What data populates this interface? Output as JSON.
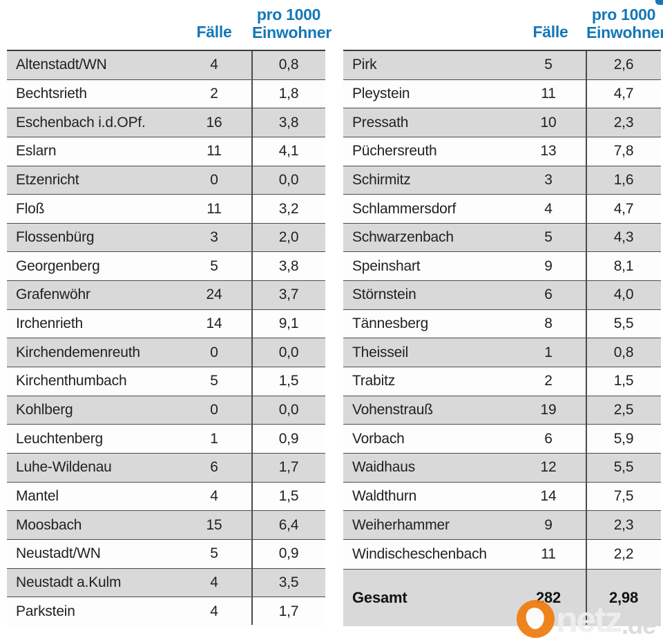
{
  "chart_data": {
    "type": "table",
    "columns": {
      "municipality": "",
      "cases": "Fälle",
      "rate_line1": "pro 1000",
      "rate_line2": "Einwohner"
    },
    "left": {
      "rows": [
        [
          "Altenstadt/WN",
          "4",
          "0,8"
        ],
        [
          "Bechtsrieth",
          "2",
          "1,8"
        ],
        [
          "Eschenbach i.d.OPf.",
          "16",
          "3,8"
        ],
        [
          "Eslarn",
          "11",
          "4,1"
        ],
        [
          "Etzenricht",
          "0",
          "0,0"
        ],
        [
          "Floß",
          "11",
          "3,2"
        ],
        [
          "Flossenbürg",
          "3",
          "2,0"
        ],
        [
          "Georgenberg",
          "5",
          "3,8"
        ],
        [
          "Grafenwöhr",
          "24",
          "3,7"
        ],
        [
          "Irchenrieth",
          "14",
          "9,1"
        ],
        [
          "Kirchendemenreuth",
          "0",
          "0,0"
        ],
        [
          "Kirchenthumbach",
          "5",
          "1,5"
        ],
        [
          "Kohlberg",
          "0",
          "0,0"
        ],
        [
          "Leuchtenberg",
          "1",
          "0,9"
        ],
        [
          "Luhe-Wildenau",
          "6",
          "1,7"
        ],
        [
          "Mantel",
          "4",
          "1,5"
        ],
        [
          "Moosbach",
          "15",
          "6,4"
        ],
        [
          "Neustadt/WN",
          "5",
          "0,9"
        ],
        [
          "Neustadt a.Kulm",
          "4",
          "3,5"
        ],
        [
          "Parkstein",
          "4",
          "1,7"
        ]
      ]
    },
    "right": {
      "rows": [
        [
          "Pirk",
          "5",
          "2,6"
        ],
        [
          "Pleystein",
          "11",
          "4,7"
        ],
        [
          "Pressath",
          "10",
          "2,3"
        ],
        [
          "Püchersreuth",
          "13",
          "7,8"
        ],
        [
          "Schirmitz",
          "3",
          "1,6"
        ],
        [
          "Schlammersdorf",
          "4",
          "4,7"
        ],
        [
          "Schwarzenbach",
          "5",
          "4,3"
        ],
        [
          "Speinshart",
          "9",
          "8,1"
        ],
        [
          "Störnstein",
          "6",
          "4,0"
        ],
        [
          "Tännesberg",
          "8",
          "5,5"
        ],
        [
          "Theisseil",
          "1",
          "0,8"
        ],
        [
          "Trabitz",
          "2",
          "1,5"
        ],
        [
          "Vohenstrauß",
          "19",
          "2,5"
        ],
        [
          "Vorbach",
          "6",
          "5,9"
        ],
        [
          "Waidhaus",
          "12",
          "5,5"
        ],
        [
          "Waldthurn",
          "14",
          "7,5"
        ],
        [
          "Weiherhammer",
          "9",
          "2,3"
        ],
        [
          "Windischeschenbach",
          "11",
          "2,2"
        ]
      ]
    },
    "total": {
      "label": "Gesamt",
      "cases": "282",
      "rate": "2,98"
    },
    "layout": {
      "striped": true,
      "stripe_color": "#d9d9d9",
      "header_color": "#1377b7"
    }
  },
  "watermark": {
    "logo_icon": "onetz-drop-in-circle",
    "logo_color": "#ef7f12",
    "text": "netz",
    "suffix": ".de"
  }
}
